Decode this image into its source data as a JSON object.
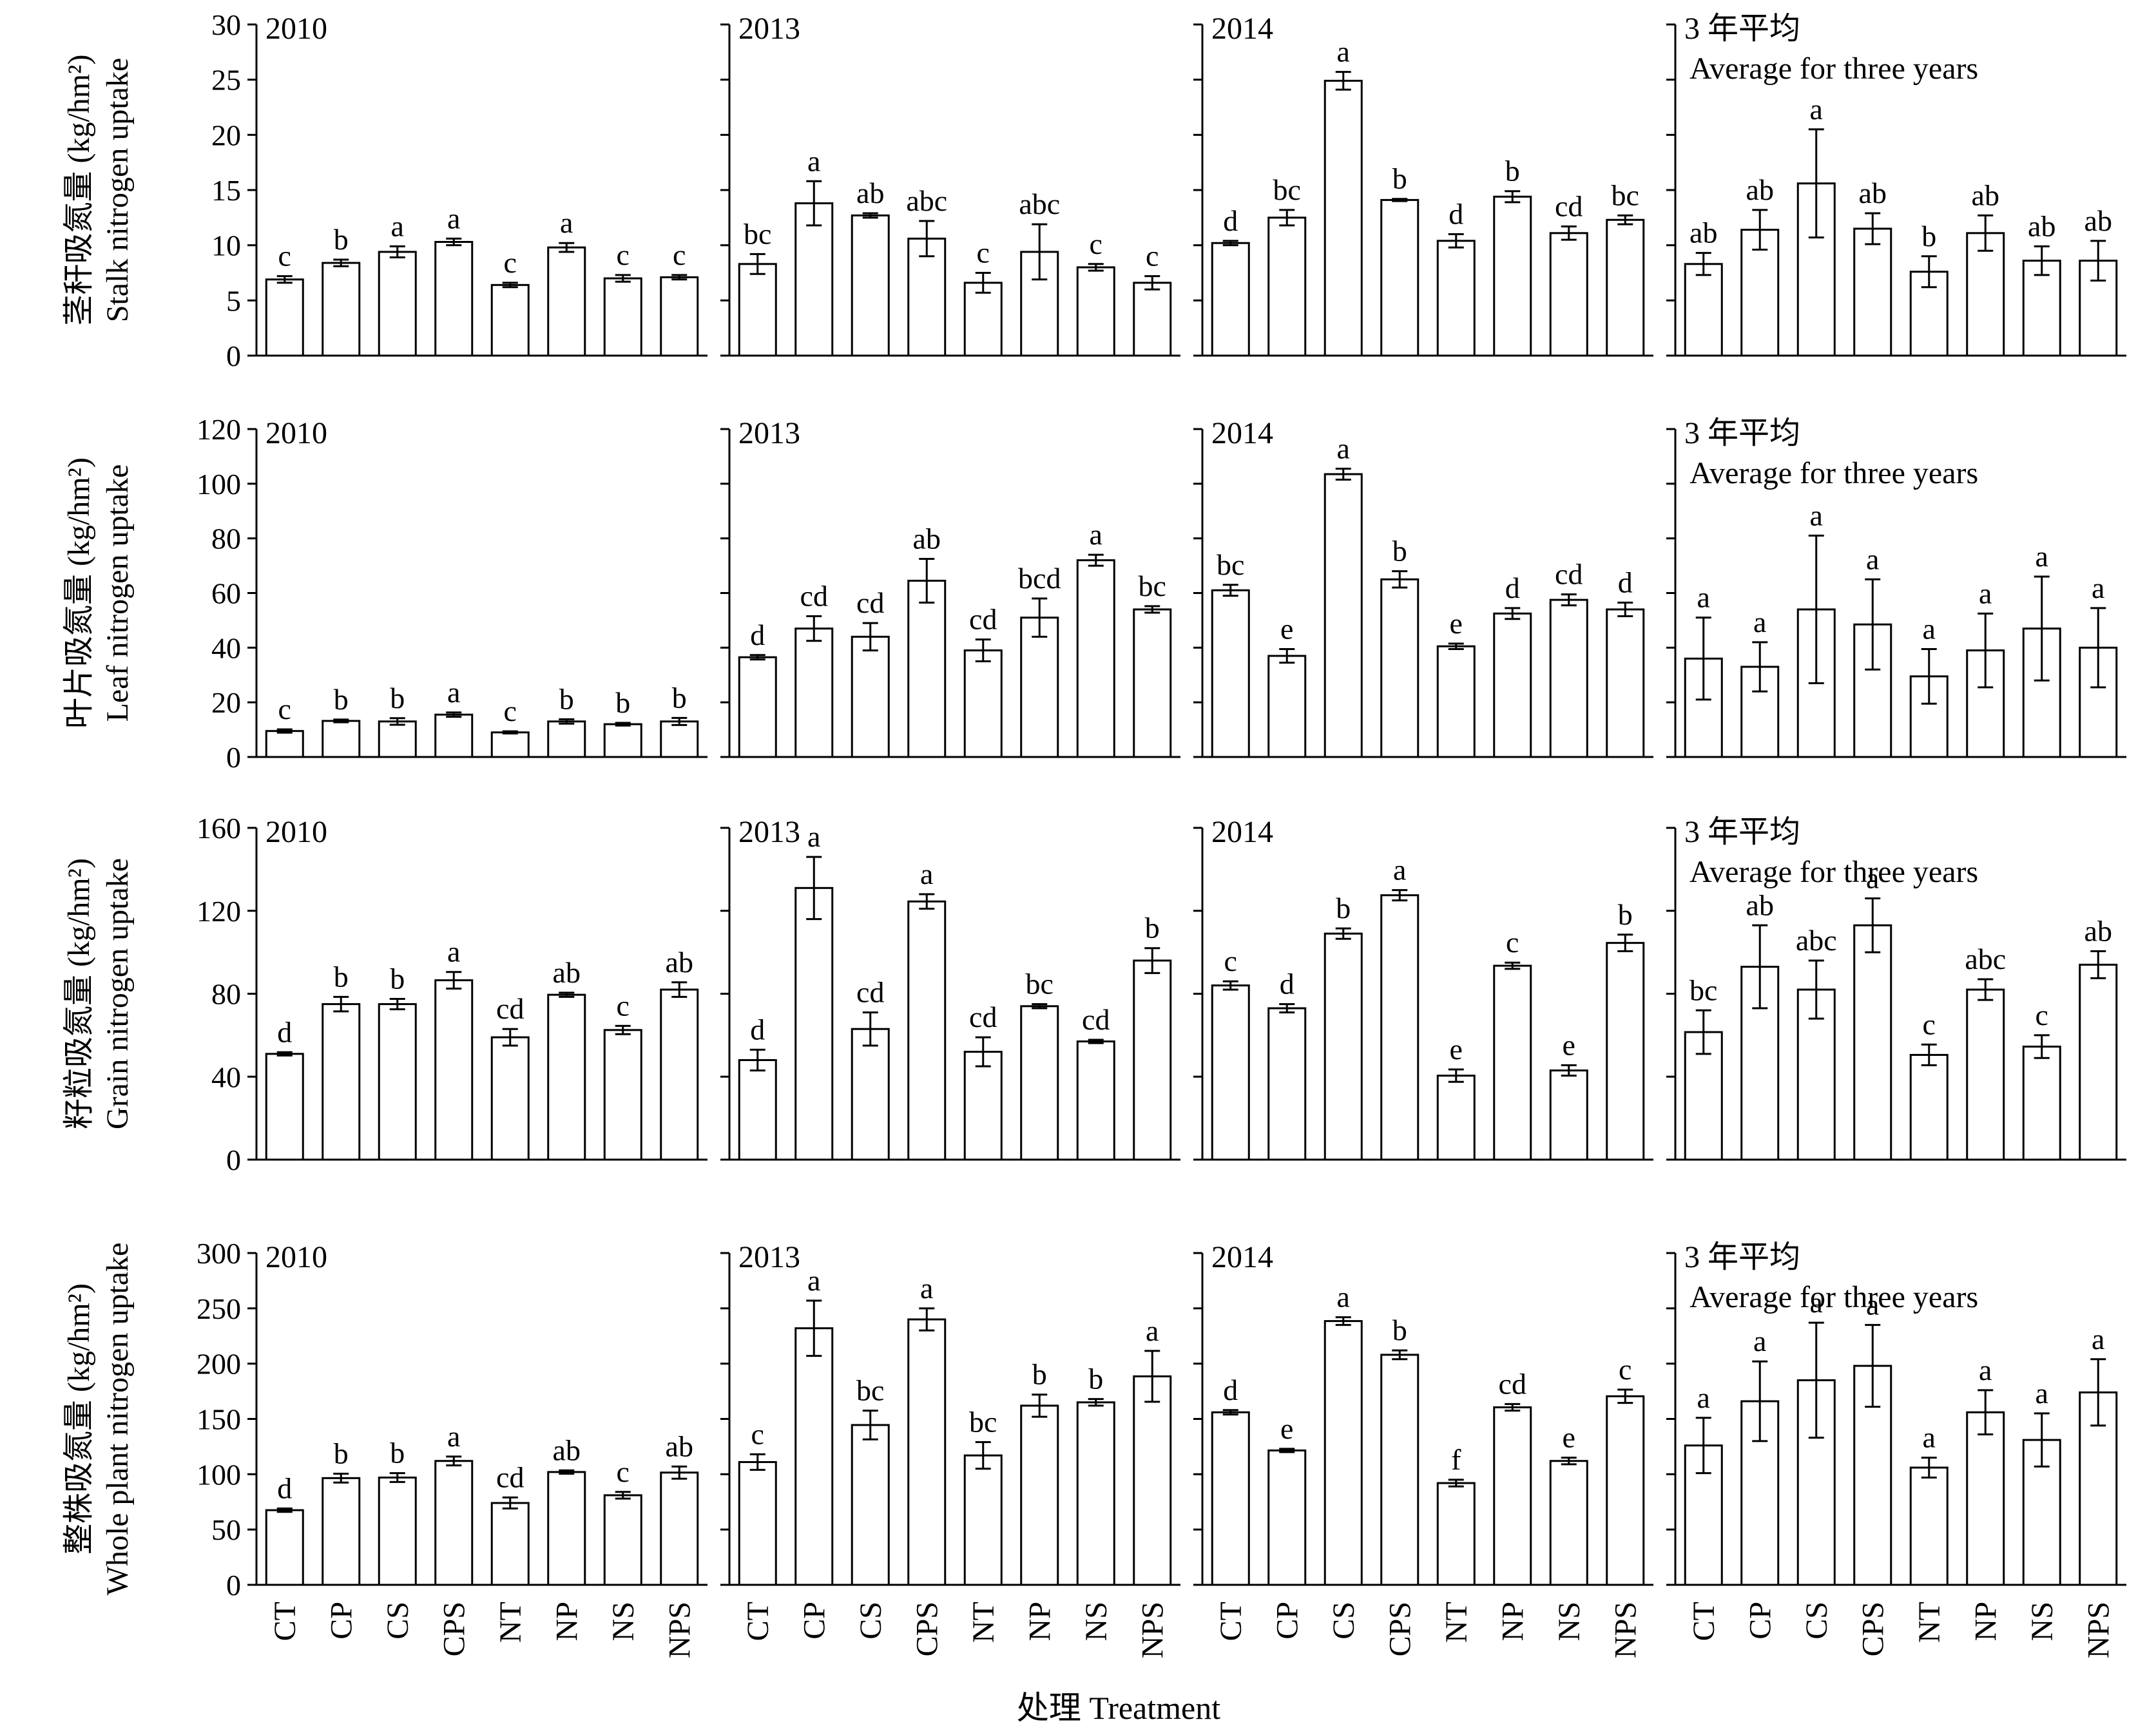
{
  "xlabel": "处理 Treatment",
  "categories": [
    "CT",
    "CP",
    "CS",
    "CPS",
    "NT",
    "NP",
    "NS",
    "NPS"
  ],
  "chart_data": [
    {
      "type": "bar",
      "row_label_cn": "茎秆吸氮量 (kg/hm²)",
      "row_label_en": "Stalk nitrogen uptake",
      "ylim": [
        0,
        30
      ],
      "yticks": [
        0,
        5,
        10,
        15,
        20,
        25,
        30
      ],
      "categories": [
        "CT",
        "CP",
        "CS",
        "CPS",
        "NT",
        "NP",
        "NS",
        "NPS"
      ],
      "panels": [
        {
          "title": "2010",
          "title2": "",
          "values": [
            6.9,
            8.4,
            9.4,
            10.3,
            6.4,
            9.8,
            7.0,
            7.1
          ],
          "errors": [
            0.3,
            0.3,
            0.5,
            0.3,
            0.2,
            0.4,
            0.3,
            0.2
          ],
          "labels": [
            "c",
            "b",
            "a",
            "a",
            "c",
            "a",
            "c",
            "c"
          ]
        },
        {
          "title": "2013",
          "title2": "",
          "values": [
            8.3,
            13.8,
            12.7,
            10.6,
            6.6,
            9.4,
            8.0,
            6.6
          ],
          "errors": [
            0.9,
            2.0,
            0.2,
            1.6,
            0.9,
            2.5,
            0.3,
            0.6
          ],
          "labels": [
            "bc",
            "a",
            "ab",
            "abc",
            "c",
            "abc",
            "c",
            "c"
          ]
        },
        {
          "title": "2014",
          "title2": "",
          "values": [
            10.2,
            12.5,
            24.9,
            14.1,
            10.4,
            14.4,
            11.1,
            12.3
          ],
          "errors": [
            0.2,
            0.7,
            0.8,
            0.1,
            0.6,
            0.5,
            0.6,
            0.4
          ],
          "labels": [
            "d",
            "bc",
            "a",
            "b",
            "d",
            "b",
            "cd",
            "bc"
          ]
        },
        {
          "title": "3 年平均",
          "title2": "Average for three years",
          "values": [
            8.3,
            11.4,
            15.6,
            11.5,
            7.6,
            11.1,
            8.6,
            8.6
          ],
          "errors": [
            1.0,
            1.8,
            4.9,
            1.4,
            1.4,
            1.6,
            1.3,
            1.8
          ],
          "labels": [
            "ab",
            "ab",
            "a",
            "ab",
            "b",
            "ab",
            "ab",
            "ab"
          ]
        }
      ]
    },
    {
      "type": "bar",
      "row_label_cn": "叶片吸氮量 (kg/hm²)",
      "row_label_en": "Leaf nitrogen uptake",
      "ylim": [
        0,
        120
      ],
      "yticks": [
        0,
        20,
        40,
        60,
        80,
        100,
        120
      ],
      "categories": [
        "CT",
        "CP",
        "CS",
        "CPS",
        "NT",
        "NP",
        "NS",
        "NPS"
      ],
      "panels": [
        {
          "title": "2010",
          "title2": "",
          "values": [
            9.5,
            13.2,
            13.0,
            15.5,
            9.0,
            13.0,
            12.0,
            13.0
          ],
          "errors": [
            0.6,
            0.5,
            1.2,
            0.8,
            0.4,
            0.8,
            0.5,
            1.3
          ],
          "labels": [
            "c",
            "b",
            "b",
            "a",
            "c",
            "b",
            "b",
            "b"
          ]
        },
        {
          "title": "2013",
          "title2": "",
          "values": [
            36.5,
            47.0,
            44.0,
            64.5,
            39.0,
            51.0,
            72.0,
            54.0
          ],
          "errors": [
            0.8,
            4.5,
            5.0,
            8.0,
            4.0,
            7.0,
            2.0,
            1.2
          ],
          "labels": [
            "d",
            "cd",
            "cd",
            "ab",
            "cd",
            "bcd",
            "a",
            "bc"
          ]
        },
        {
          "title": "2014",
          "title2": "",
          "values": [
            61.0,
            37.0,
            103.5,
            65.0,
            40.5,
            52.5,
            57.5,
            54.0
          ],
          "errors": [
            2.0,
            2.5,
            2.0,
            3.0,
            1.0,
            2.0,
            2.0,
            2.5
          ],
          "labels": [
            "bc",
            "e",
            "a",
            "b",
            "e",
            "d",
            "cd",
            "d"
          ]
        },
        {
          "title": "3 年平均",
          "title2": "Average for three years",
          "values": [
            36.0,
            33.0,
            54.0,
            48.5,
            29.5,
            39.0,
            47.0,
            40.0
          ],
          "errors": [
            15.0,
            9.0,
            27.0,
            16.5,
            10.0,
            13.5,
            19.0,
            14.5
          ],
          "labels": [
            "a",
            "a",
            "a",
            "a",
            "a",
            "a",
            "a",
            "a"
          ]
        }
      ]
    },
    {
      "type": "bar",
      "row_label_cn": "籽粒吸氮量 (kg/hm²)",
      "row_label_en": "Grain nitrogen uptake",
      "ylim": [
        0,
        160
      ],
      "yticks": [
        0,
        40,
        80,
        120,
        160
      ],
      "categories": [
        "CT",
        "CP",
        "CS",
        "CPS",
        "NT",
        "NP",
        "NS",
        "NPS"
      ],
      "panels": [
        {
          "title": "2010",
          "title2": "",
          "values": [
            51.0,
            75.0,
            75.0,
            86.5,
            59.0,
            79.5,
            62.5,
            82.0
          ],
          "errors": [
            0.8,
            3.5,
            2.5,
            4.0,
            4.0,
            1.0,
            2.0,
            3.5
          ],
          "labels": [
            "d",
            "b",
            "b",
            "a",
            "cd",
            "ab",
            "c",
            "ab"
          ]
        },
        {
          "title": "2013",
          "title2": "",
          "values": [
            48.0,
            131.0,
            63.0,
            124.5,
            52.0,
            74.0,
            57.0,
            96.0
          ],
          "errors": [
            5.0,
            15.0,
            8.0,
            3.5,
            7.0,
            1.0,
            0.8,
            6.0
          ],
          "labels": [
            "d",
            "a",
            "cd",
            "a",
            "cd",
            "bc",
            "cd",
            "b"
          ]
        },
        {
          "title": "2014",
          "title2": "",
          "values": [
            84.0,
            73.0,
            109.0,
            127.5,
            40.5,
            93.5,
            43.0,
            104.5
          ],
          "errors": [
            2.0,
            2.0,
            2.5,
            2.5,
            3.0,
            1.5,
            2.5,
            4.0
          ],
          "labels": [
            "c",
            "d",
            "b",
            "a",
            "e",
            "c",
            "e",
            "b"
          ]
        },
        {
          "title": "3 年平均",
          "title2": "Average for three years",
          "values": [
            61.5,
            93.0,
            82.0,
            113.0,
            50.5,
            82.0,
            54.5,
            94.0
          ],
          "errors": [
            10.5,
            20.0,
            14.0,
            13.0,
            5.0,
            5.0,
            5.5,
            6.5
          ],
          "labels": [
            "bc",
            "ab",
            "abc",
            "a",
            "c",
            "abc",
            "c",
            "ab"
          ]
        }
      ]
    },
    {
      "type": "bar",
      "row_label_cn": "整株吸氮量 (kg/hm²)",
      "row_label_en": "Whole plant nitrogen uptake",
      "ylim": [
        0,
        300
      ],
      "yticks": [
        0,
        50,
        100,
        150,
        200,
        250,
        300
      ],
      "categories": [
        "CT",
        "CP",
        "CS",
        "CPS",
        "NT",
        "NP",
        "NS",
        "NPS"
      ],
      "panels": [
        {
          "title": "2010",
          "title2": "",
          "values": [
            67.5,
            96.5,
            97.0,
            112.0,
            74.0,
            102.0,
            81.0,
            101.5
          ],
          "errors": [
            1.5,
            4.0,
            4.0,
            4.0,
            5.0,
            1.5,
            3.0,
            5.5
          ],
          "labels": [
            "d",
            "b",
            "b",
            "a",
            "cd",
            "ab",
            "c",
            "ab"
          ]
        },
        {
          "title": "2013",
          "title2": "",
          "values": [
            111.0,
            232.0,
            144.5,
            240.0,
            117.0,
            162.0,
            165.0,
            188.5
          ],
          "errors": [
            7.0,
            25.0,
            13.0,
            10.0,
            12.0,
            10.0,
            3.0,
            23.0
          ],
          "labels": [
            "c",
            "a",
            "bc",
            "a",
            "bc",
            "b",
            "b",
            "a"
          ]
        },
        {
          "title": "2014",
          "title2": "",
          "values": [
            156.0,
            121.5,
            238.5,
            208.0,
            92.0,
            160.5,
            112.0,
            170.5
          ],
          "errors": [
            2.0,
            1.5,
            3.5,
            4.0,
            3.0,
            3.0,
            3.0,
            6.0
          ],
          "labels": [
            "d",
            "e",
            "a",
            "b",
            "f",
            "cd",
            "e",
            "c"
          ]
        },
        {
          "title": "3 年平均",
          "title2": "Average for three years",
          "values": [
            126.0,
            166.0,
            185.0,
            198.0,
            106.0,
            156.0,
            131.0,
            174.0
          ],
          "errors": [
            25.0,
            36.0,
            52.0,
            37.0,
            9.0,
            20.0,
            24.0,
            30.0
          ],
          "labels": [
            "a",
            "a",
            "a",
            "a",
            "a",
            "a",
            "a",
            "a"
          ]
        }
      ]
    }
  ]
}
